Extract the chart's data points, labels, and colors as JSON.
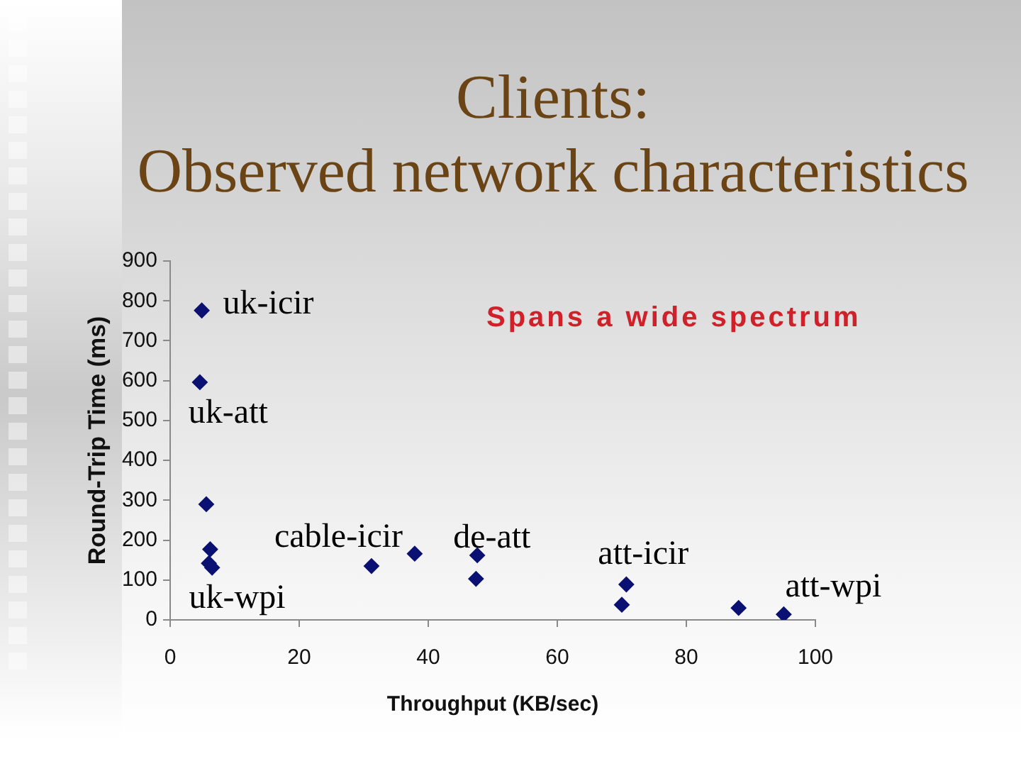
{
  "chart_data": {
    "type": "scatter",
    "title": "Clients:\nObserved network characteristics",
    "xlabel": "Throughput (KB/sec)",
    "ylabel": "Round-Trip Time (ms)",
    "x": [
      4.9,
      4.6,
      5.6,
      6.2,
      6.0,
      6.5,
      31.2,
      37.9,
      47.6,
      47.4,
      70.7,
      70.0,
      88.1,
      95.1
    ],
    "values": [
      776,
      596,
      290,
      177,
      142,
      131,
      135,
      166,
      162,
      103,
      89,
      38,
      30,
      14
    ],
    "color": "#0a1172",
    "marker": "diamond",
    "xlim": [
      0,
      100
    ],
    "xticks": [
      0,
      20,
      40,
      60,
      80,
      100
    ],
    "ylim": [
      0,
      900
    ],
    "yticks": [
      0,
      100,
      200,
      300,
      400,
      500,
      600,
      700,
      800,
      900
    ],
    "annotations": [
      {
        "text": "uk-icir",
        "x": 4.9,
        "y": 776
      },
      {
        "text": "uk-att",
        "x": 4.6,
        "y": 596
      },
      {
        "text": "cable-icir",
        "x": 37.9,
        "y": 166
      },
      {
        "text": "uk-wpi",
        "x": 6.0,
        "y": 142
      },
      {
        "text": "de-att",
        "x": 47.6,
        "y": 162
      },
      {
        "text": "att-icir",
        "x": 70.7,
        "y": 89
      },
      {
        "text": "att-wpi",
        "x": 95.1,
        "y": 14
      },
      "Spans a wide spectrum"
    ]
  }
}
